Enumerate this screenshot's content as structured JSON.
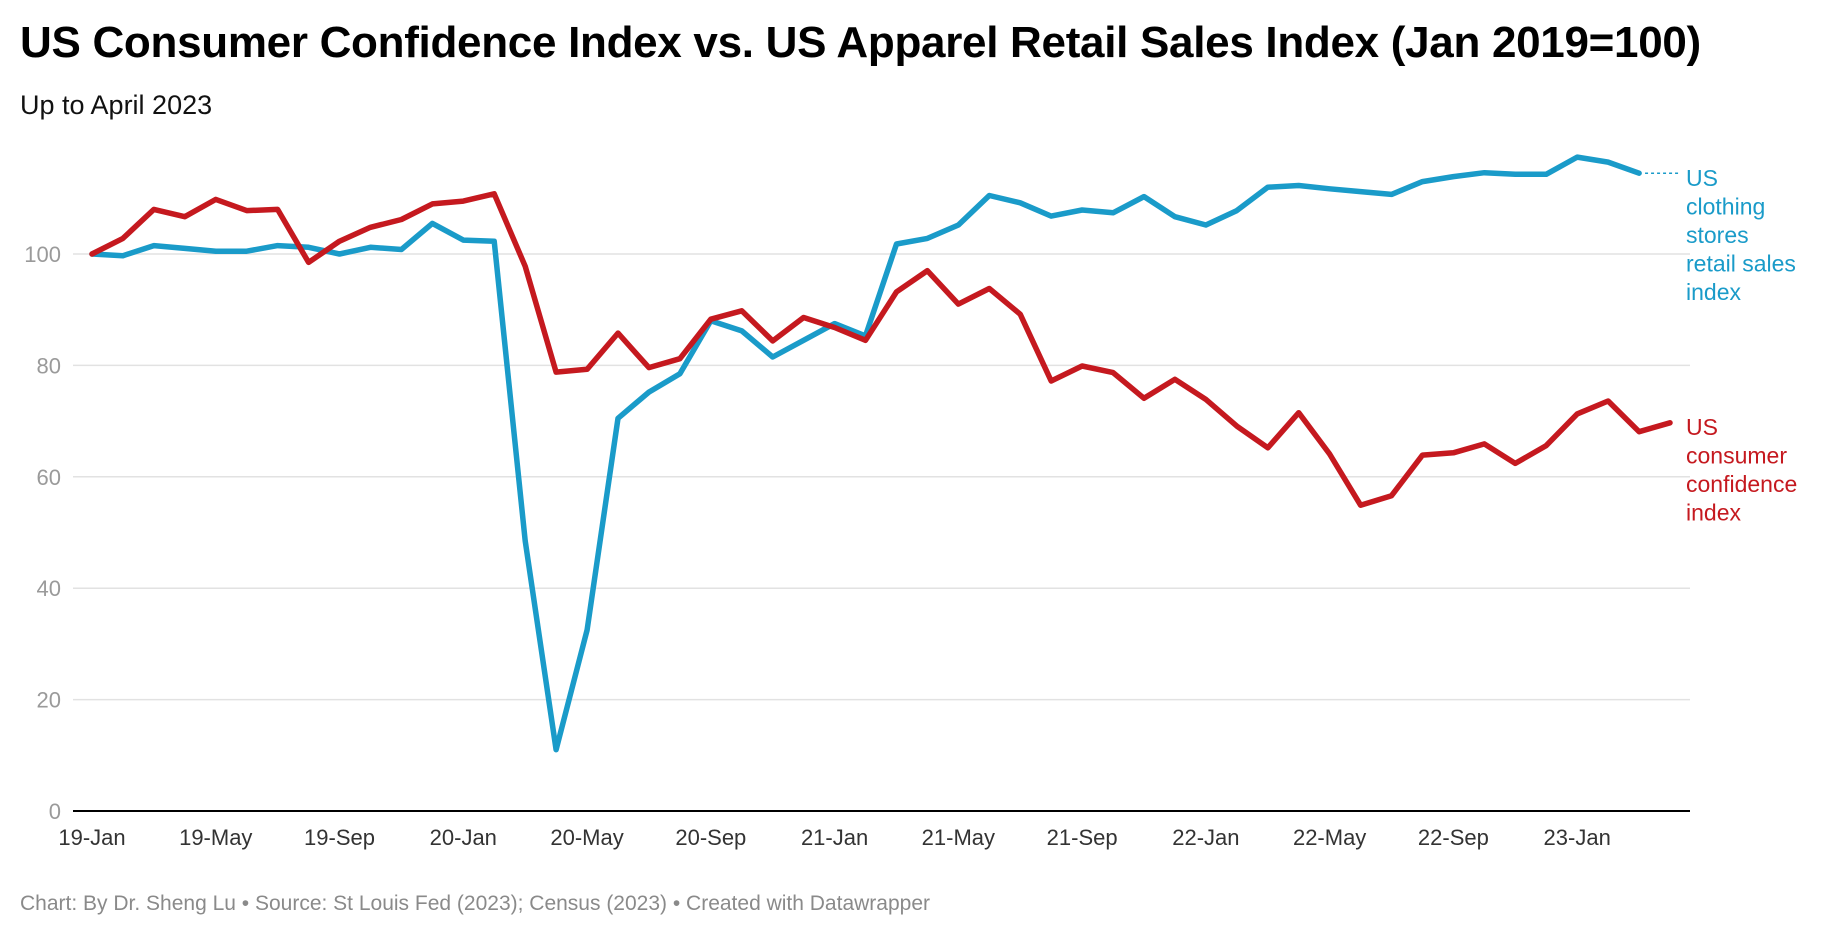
{
  "header": {
    "title": "US Consumer Confidence Index vs. US Apparel Retail Sales Index (Jan 2019=100)",
    "subtitle": "Up to April 2023"
  },
  "footer": {
    "text": "Chart: By Dr. Sheng Lu • Source: St Louis Fed (2023); Census (2023) • Created with Datawrapper"
  },
  "colors": {
    "clothing": "#1a9bc9",
    "confidence": "#c5191f",
    "grid": "#e2e2e2",
    "axis": "#000000"
  },
  "chart_data": {
    "type": "line",
    "title": "US Consumer Confidence Index vs. US Apparel Retail Sales Index (Jan 2019=100)",
    "subtitle": "Up to April 2023",
    "xlabel": "",
    "ylabel": "",
    "ylim": [
      0,
      120
    ],
    "yticks": [
      0,
      20,
      40,
      60,
      80,
      100
    ],
    "x_tick_labels": [
      "19-Jan",
      "19-May",
      "19-Sep",
      "20-Jan",
      "20-May",
      "20-Sep",
      "21-Jan",
      "21-May",
      "21-Sep",
      "22-Jan",
      "22-May",
      "22-Sep",
      "23-Jan"
    ],
    "x_tick_every": 4,
    "x_count": 52,
    "grid": true,
    "legend": "direct labels at right end of lines",
    "series": [
      {
        "name": "US clothing stores retail sales index",
        "label_lines": [
          "US",
          "clothing",
          "stores",
          "retail sales",
          "index"
        ],
        "color_key": "clothing",
        "values": [
          100,
          99.7,
          101.5,
          101,
          100.5,
          100.5,
          101.5,
          101.2,
          100,
          101.2,
          100.8,
          105.5,
          102.5,
          102.3,
          48.5,
          11,
          32.5,
          70.5,
          75.2,
          78.5,
          88,
          86.2,
          81.5,
          84.5,
          87.5,
          85.3,
          101.8,
          102.8,
          105.2,
          110.5,
          109.2,
          106.8,
          107.9,
          107.4,
          110.3,
          106.7,
          105.2,
          107.8,
          112,
          112.3,
          111.7,
          111.2,
          110.7,
          113,
          113.9,
          114.6,
          114.3,
          114.3,
          117.4,
          116.5,
          114.5
        ]
      },
      {
        "name": "US consumer confidence index",
        "label_lines": [
          "US",
          "consumer",
          "confidence",
          "index"
        ],
        "color_key": "confidence",
        "values": [
          100,
          102.8,
          108,
          106.7,
          109.8,
          107.8,
          108,
          98.5,
          102.3,
          104.8,
          106.2,
          109,
          109.5,
          110.8,
          97.8,
          78.8,
          79.3,
          85.8,
          79.6,
          81.2,
          88.3,
          89.8,
          84.4,
          88.6,
          86.8,
          84.5,
          93.2,
          97,
          91,
          93.8,
          89.2,
          77.2,
          79.9,
          78.7,
          74.1,
          77.5,
          73.9,
          69.1,
          65.2,
          71.5,
          64.1,
          54.9,
          56.6,
          63.9,
          64.3,
          65.9,
          62.4,
          65.6,
          71.3,
          73.6,
          68.1,
          69.7
        ]
      }
    ]
  }
}
